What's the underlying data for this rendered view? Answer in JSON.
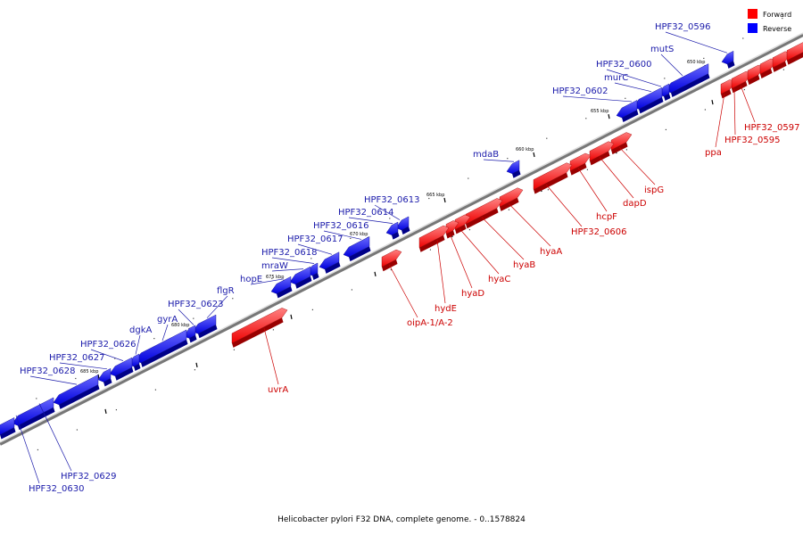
{
  "caption": "Helicobacter pylori F32 DNA, complete genome. - 0..1578824",
  "legend": [
    {
      "label": "Forward",
      "color": "#ff0000"
    },
    {
      "label": "Reverse",
      "color": "#0000ff"
    }
  ],
  "scale_labels": [
    "650 kbp",
    "655 kbp",
    "660 kbp",
    "665 kbp",
    "670 kbp",
    "675 kbp",
    "680 kbp",
    "685 kbp"
  ],
  "genes": {
    "forward": [
      "HPF32_0597",
      "HPF32_0595",
      "ppa",
      "ispG",
      "dapD",
      "hcpF",
      "HPF32_0606",
      "hyaA",
      "hyaB",
      "hyaC",
      "hyaD",
      "hydE",
      "oipA-1/A-2",
      "uvrA"
    ],
    "reverse": [
      "HPF32_0596",
      "mutS",
      "HPF32_0600",
      "murC",
      "HPF32_0602",
      "mdaB",
      "HPF32_0613",
      "HPF32_0614",
      "HPF32_0616",
      "HPF32_0617",
      "HPF32_0618",
      "mraW",
      "hopE",
      "flgR",
      "HPF32_0623",
      "gyrA",
      "dgkA",
      "HPF32_0626",
      "HPF32_0627",
      "HPF32_0628",
      "HPF32_0629",
      "HPF32_0630"
    ]
  }
}
